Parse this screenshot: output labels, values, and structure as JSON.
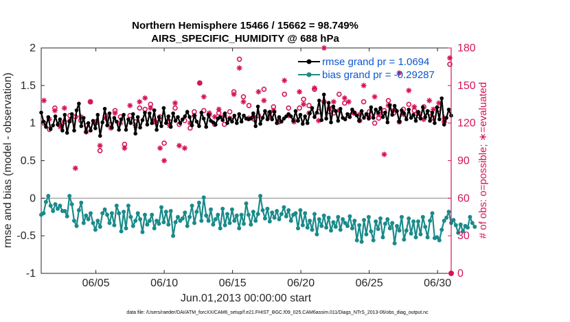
{
  "chart_data": {
    "type": "line",
    "title_line1": "Northern Hemisphere 15466 / 15662 = 98.749%",
    "title_line2": "AIRS_SPECIFIC_HUMIDITY @ 688 hPa",
    "xlabel": "Jun.01,2013 00:00:00 start",
    "ylabel": "rmse and bias (model - observation)",
    "ylabel_right": "# of obs: o=possible; ∗=evaluated",
    "footnote": "data file: /Users/raeder/DAI/ATM_forcXX/CAM6_setup/f.e21.FHIST_BGC.f09_025.CAM6assim.011/Diags_NTrS_2013-06/obs_diag_output.nc",
    "xlim": [
      1,
      31
    ],
    "ylim": [
      -1,
      2
    ],
    "ylim_right": [
      0,
      180
    ],
    "x_ticks": [
      5,
      10,
      15,
      20,
      25,
      30
    ],
    "x_tick_labels": [
      "06/05",
      "06/10",
      "06/15",
      "06/20",
      "06/25",
      "06/30"
    ],
    "y_ticks": [
      -1,
      -0.5,
      0,
      0.5,
      1,
      1.5,
      2
    ],
    "y_tick_labels": [
      "-1",
      "-0.5",
      "0",
      "0.5",
      "1",
      "1.5",
      "2"
    ],
    "y_ticks_right": [
      0,
      30,
      60,
      90,
      120,
      150,
      180
    ],
    "y_tick_labels_right": [
      "0",
      "30",
      "60",
      "90",
      "120",
      "150",
      "180"
    ],
    "legend_position": "top-right",
    "series": [
      {
        "name": "rmse grand pr = 1.0694",
        "color": "#000000",
        "marker": "star",
        "values": [
          1.14,
          1.02,
          0.95,
          1.08,
          0.92,
          0.97,
          1.09,
          0.98,
          1.05,
          0.9,
          1.11,
          0.87,
          1.02,
          1.12,
          0.9,
          1.17,
          1.26,
          0.96,
          1.07,
          0.88,
          1.0,
          0.9,
          1.03,
          0.93,
          1.11,
          0.83,
          1.01,
          1.19,
          0.97,
          1.13,
          0.94,
          1.07,
          1.02,
          0.91,
          1.05,
          1.11,
          0.91,
          1.05,
          1.0,
          1.12,
          0.86,
          1.08,
          0.94,
          1.04,
          1.14,
          0.98,
          1.13,
          1.0,
          1.17,
          0.91,
          1.08,
          0.96,
          1.2,
          1.0,
          1.09,
          0.95,
          1.13,
          1.03,
          1.08,
          1.0,
          1.05,
          1.09,
          1.15,
          1.08,
          0.97,
          1.1,
          1.02,
          0.96,
          1.14,
          1.06,
          0.95,
          1.11,
          1.03,
          1.01,
          0.98,
          1.06,
          1.08,
          1.04,
          1.13,
          1.0,
          1.06,
          1.02,
          1.1,
          1.0,
          1.12,
          1.02,
          1.1,
          1.06,
          1.05,
          1.06,
          1.13,
          0.96,
          1.22,
          0.99,
          1.07,
          1.16,
          1.05,
          1.15,
          1.05,
          1.15,
          1.0,
          1.08,
          1.02,
          1.06,
          1.09,
          1.12,
          1.09,
          1.03,
          1.16,
          1.03,
          1.11,
          0.99,
          1.09,
          1.0,
          1.13,
          1.2,
          1.08,
          1.14,
          1.3,
          1.04,
          1.38,
          1.06,
          1.27,
          1.01,
          1.22,
          1.16,
          1.03,
          1.19,
          1.07,
          1.05,
          1.12,
          1.08,
          1.18,
          1.14,
          1.1,
          1.03,
          1.16,
          1.07,
          1.12,
          1.06,
          1.21,
          1.07,
          1.18,
          1.14,
          1.2,
          1.08,
          1.14,
          1.01,
          1.24,
          1.11,
          1.23,
          1.16,
          1.02,
          1.17,
          1.13,
          1.05,
          1.18,
          1.07,
          1.11,
          1.03,
          1.15,
          1.06,
          1.21,
          1.08,
          1.16,
          1.03,
          1.14,
          1.0,
          1.21,
          1.05,
          1.33,
          0.98,
          1.07,
          1.18,
          1.1
        ],
        "x_start": 1.0,
        "x_step": 0.1724
      },
      {
        "name": "bias grand pr = -0.29287",
        "color": "#1a8a8a",
        "marker": "dot",
        "values": [
          -0.22,
          -0.2,
          -0.05,
          0.03,
          -0.1,
          -0.17,
          -0.08,
          -0.14,
          -0.1,
          -0.17,
          -0.17,
          -0.24,
          0.03,
          -0.08,
          -0.3,
          -0.37,
          -0.16,
          -0.06,
          -0.33,
          -0.23,
          -0.28,
          -0.2,
          -0.33,
          -0.42,
          -0.3,
          -0.38,
          -0.2,
          -0.15,
          -0.22,
          -0.33,
          -0.2,
          -0.36,
          -0.1,
          -0.2,
          -0.44,
          -0.18,
          -0.4,
          -0.1,
          -0.25,
          -0.37,
          -0.3,
          -0.2,
          -0.28,
          -0.45,
          -0.22,
          -0.35,
          -0.3,
          -0.22,
          -0.4,
          -0.3,
          -0.34,
          -0.12,
          -0.32,
          -0.18,
          -0.35,
          -0.17,
          -0.5,
          -0.32,
          -0.25,
          -0.3,
          -0.27,
          -0.19,
          -0.37,
          -0.25,
          -0.1,
          -0.33,
          -0.18,
          -0.06,
          -0.3,
          0.01,
          -0.23,
          -0.3,
          -0.15,
          -0.35,
          -0.28,
          -0.22,
          -0.4,
          -0.14,
          -0.36,
          -0.21,
          -0.33,
          -0.15,
          -0.3,
          -0.23,
          -0.4,
          -0.22,
          -0.34,
          -0.07,
          -0.22,
          -0.35,
          -0.18,
          -0.3,
          -0.21,
          0.03,
          -0.16,
          -0.27,
          -0.14,
          -0.31,
          -0.19,
          -0.26,
          -0.17,
          -0.28,
          -0.21,
          -0.12,
          -0.24,
          -0.16,
          -0.3,
          -0.22,
          -0.2,
          -0.4,
          -0.16,
          -0.36,
          -0.2,
          -0.39,
          -0.3,
          -0.42,
          -0.21,
          -0.48,
          -0.28,
          -0.37,
          -0.23,
          -0.39,
          -0.26,
          -0.43,
          -0.32,
          -0.38,
          -0.25,
          -0.42,
          -0.28,
          -0.33,
          -0.37,
          -0.24,
          -0.4,
          -0.3,
          -0.56,
          -0.36,
          -0.58,
          -0.29,
          -0.48,
          -0.25,
          -0.44,
          -0.56,
          -0.31,
          -0.41,
          -0.27,
          -0.52,
          -0.34,
          -0.28,
          -0.4,
          -0.33,
          -0.6,
          -0.37,
          -0.43,
          -0.25,
          -0.55,
          -0.43,
          -0.27,
          -0.47,
          -0.31,
          -0.52,
          -0.31,
          -0.48,
          -0.25,
          -0.38,
          -0.52,
          -0.3,
          -0.2,
          -0.53,
          -0.52,
          -0.56,
          -0.42,
          -0.3,
          -0.26,
          -0.18,
          -0.33,
          -0.29,
          -0.36,
          -0.46,
          -0.35,
          -0.44,
          -0.37,
          -0.39,
          -0.25,
          -0.33,
          -0.38
        ],
        "x_start": 1.0,
        "x_step": 0.1724
      },
      {
        "name": "obs possible (o)",
        "color": "#d4145a",
        "marker": "circle",
        "axis": "right",
        "x": [
          1.2,
          1.6,
          2.0,
          2.4,
          2.7,
          3.1,
          3.5,
          3.9,
          4.3,
          4.6,
          5.0,
          5.3,
          5.7,
          6.1,
          6.4,
          6.8,
          7.1,
          7.5,
          7.9,
          8.2,
          8.6,
          9.0,
          9.3,
          9.7,
          10.0,
          10.4,
          10.8,
          11.1,
          11.5,
          11.9,
          12.2,
          12.6,
          12.9,
          13.3,
          13.7,
          14.0,
          14.4,
          14.8,
          15.1,
          15.5,
          15.8,
          16.2,
          16.6,
          16.9,
          17.3,
          17.7,
          18.0,
          18.4,
          18.8,
          19.1,
          19.5,
          19.9,
          20.2,
          20.6,
          21.0,
          21.3,
          21.7,
          22.1,
          22.4,
          22.8,
          23.2,
          23.5,
          23.9,
          24.3,
          24.6,
          25.0,
          25.4,
          25.7,
          26.1,
          26.4,
          26.8,
          27.2,
          27.5,
          27.9,
          28.3,
          28.6,
          29.0,
          29.4,
          29.7,
          30.1,
          30.5,
          30.9
        ],
        "values": [
          120,
          115,
          132,
          118,
          121,
          126,
          125,
          122,
          118,
          137,
          121,
          98,
          126,
          119,
          130,
          125,
          103,
          126,
          121,
          132,
          131,
          135,
          121,
          125,
          104,
          121,
          132,
          119,
          122,
          116,
          129,
          152,
          130,
          127,
          119,
          128,
          119,
          129,
          145,
          171,
          141,
          134,
          123,
          126,
          147,
          128,
          133,
          121,
          143,
          132,
          122,
          132,
          139,
          134,
          147,
          129,
          137,
          129,
          128,
          143,
          136,
          126,
          128,
          122,
          137,
          129,
          120,
          124,
          130,
          138,
          128,
          121,
          131,
          135,
          130,
          126,
          133,
          128,
          124,
          131,
          121,
          167
        ]
      },
      {
        "name": "obs evaluated (∗)",
        "color": "#d4145a",
        "marker": "asterisk",
        "axis": "right",
        "x": [
          1.2,
          1.6,
          2.0,
          2.4,
          2.7,
          3.1,
          3.5,
          3.9,
          4.3,
          4.6,
          5.0,
          5.3,
          5.7,
          6.1,
          6.4,
          6.8,
          7.1,
          7.5,
          7.9,
          8.2,
          8.6,
          9.0,
          9.3,
          9.7,
          10.0,
          10.4,
          10.8,
          11.1,
          11.5,
          11.9,
          12.2,
          12.6,
          12.9,
          13.3,
          13.7,
          14.0,
          14.4,
          14.8,
          15.1,
          15.5,
          15.8,
          16.2,
          16.6,
          16.9,
          17.3,
          17.7,
          18.0,
          18.4,
          18.8,
          19.1,
          19.5,
          19.9,
          20.2,
          20.6,
          21.0,
          21.3,
          21.7,
          22.1,
          22.4,
          22.8,
          23.2,
          23.5,
          23.9,
          24.3,
          24.6,
          25.0,
          25.4,
          25.7,
          26.1,
          26.4,
          26.8,
          27.2,
          27.5,
          27.9,
          28.3,
          28.6,
          29.0,
          29.4,
          29.7,
          30.1,
          30.5,
          30.9
        ],
        "values": [
          138,
          123,
          130,
          117,
          132,
          122,
          84,
          125,
          113,
          137,
          120,
          102,
          124,
          116,
          128,
          120,
          100,
          134,
          118,
          137,
          140,
          132,
          122,
          100,
          90,
          118,
          136,
          102,
          100,
          120,
          126,
          152,
          141,
          128,
          125,
          131,
          126,
          124,
          143,
          164,
          137,
          124,
          125,
          145,
          138,
          125,
          130,
          122,
          154,
          126,
          121,
          145,
          135,
          128,
          148,
          122,
          180,
          132,
          137,
          130,
          140,
          137,
          128,
          127,
          150,
          125,
          141,
          127,
          95,
          134,
          130,
          160,
          127,
          146,
          133,
          128,
          123,
          138,
          131,
          136,
          124,
          172
        ]
      }
    ]
  }
}
